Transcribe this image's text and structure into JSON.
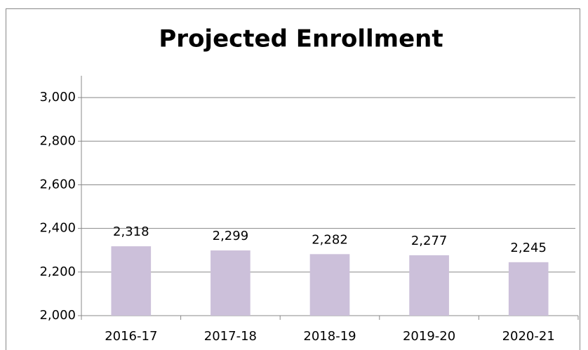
{
  "chart_data": {
    "type": "bar",
    "title": "Projected Enrollment",
    "categories": [
      "2016-17",
      "2017-18",
      "2018-19",
      "2019-20",
      "2020-21"
    ],
    "values": [
      2318,
      2299,
      2282,
      2277,
      2245
    ],
    "value_labels": [
      "2,318",
      "2,299",
      "2,282",
      "2,277",
      "2,245"
    ],
    "color": "#ccc0da",
    "ylim": [
      2000,
      3100
    ],
    "yticks": [
      {
        "value": 2000,
        "label": "2,000"
      },
      {
        "value": 2200,
        "label": "2,200"
      },
      {
        "value": 2400,
        "label": "2,400"
      },
      {
        "value": 2600,
        "label": "2,600"
      },
      {
        "value": 2800,
        "label": "2,800"
      },
      {
        "value": 3000,
        "label": "3,000"
      }
    ],
    "grid": true
  }
}
